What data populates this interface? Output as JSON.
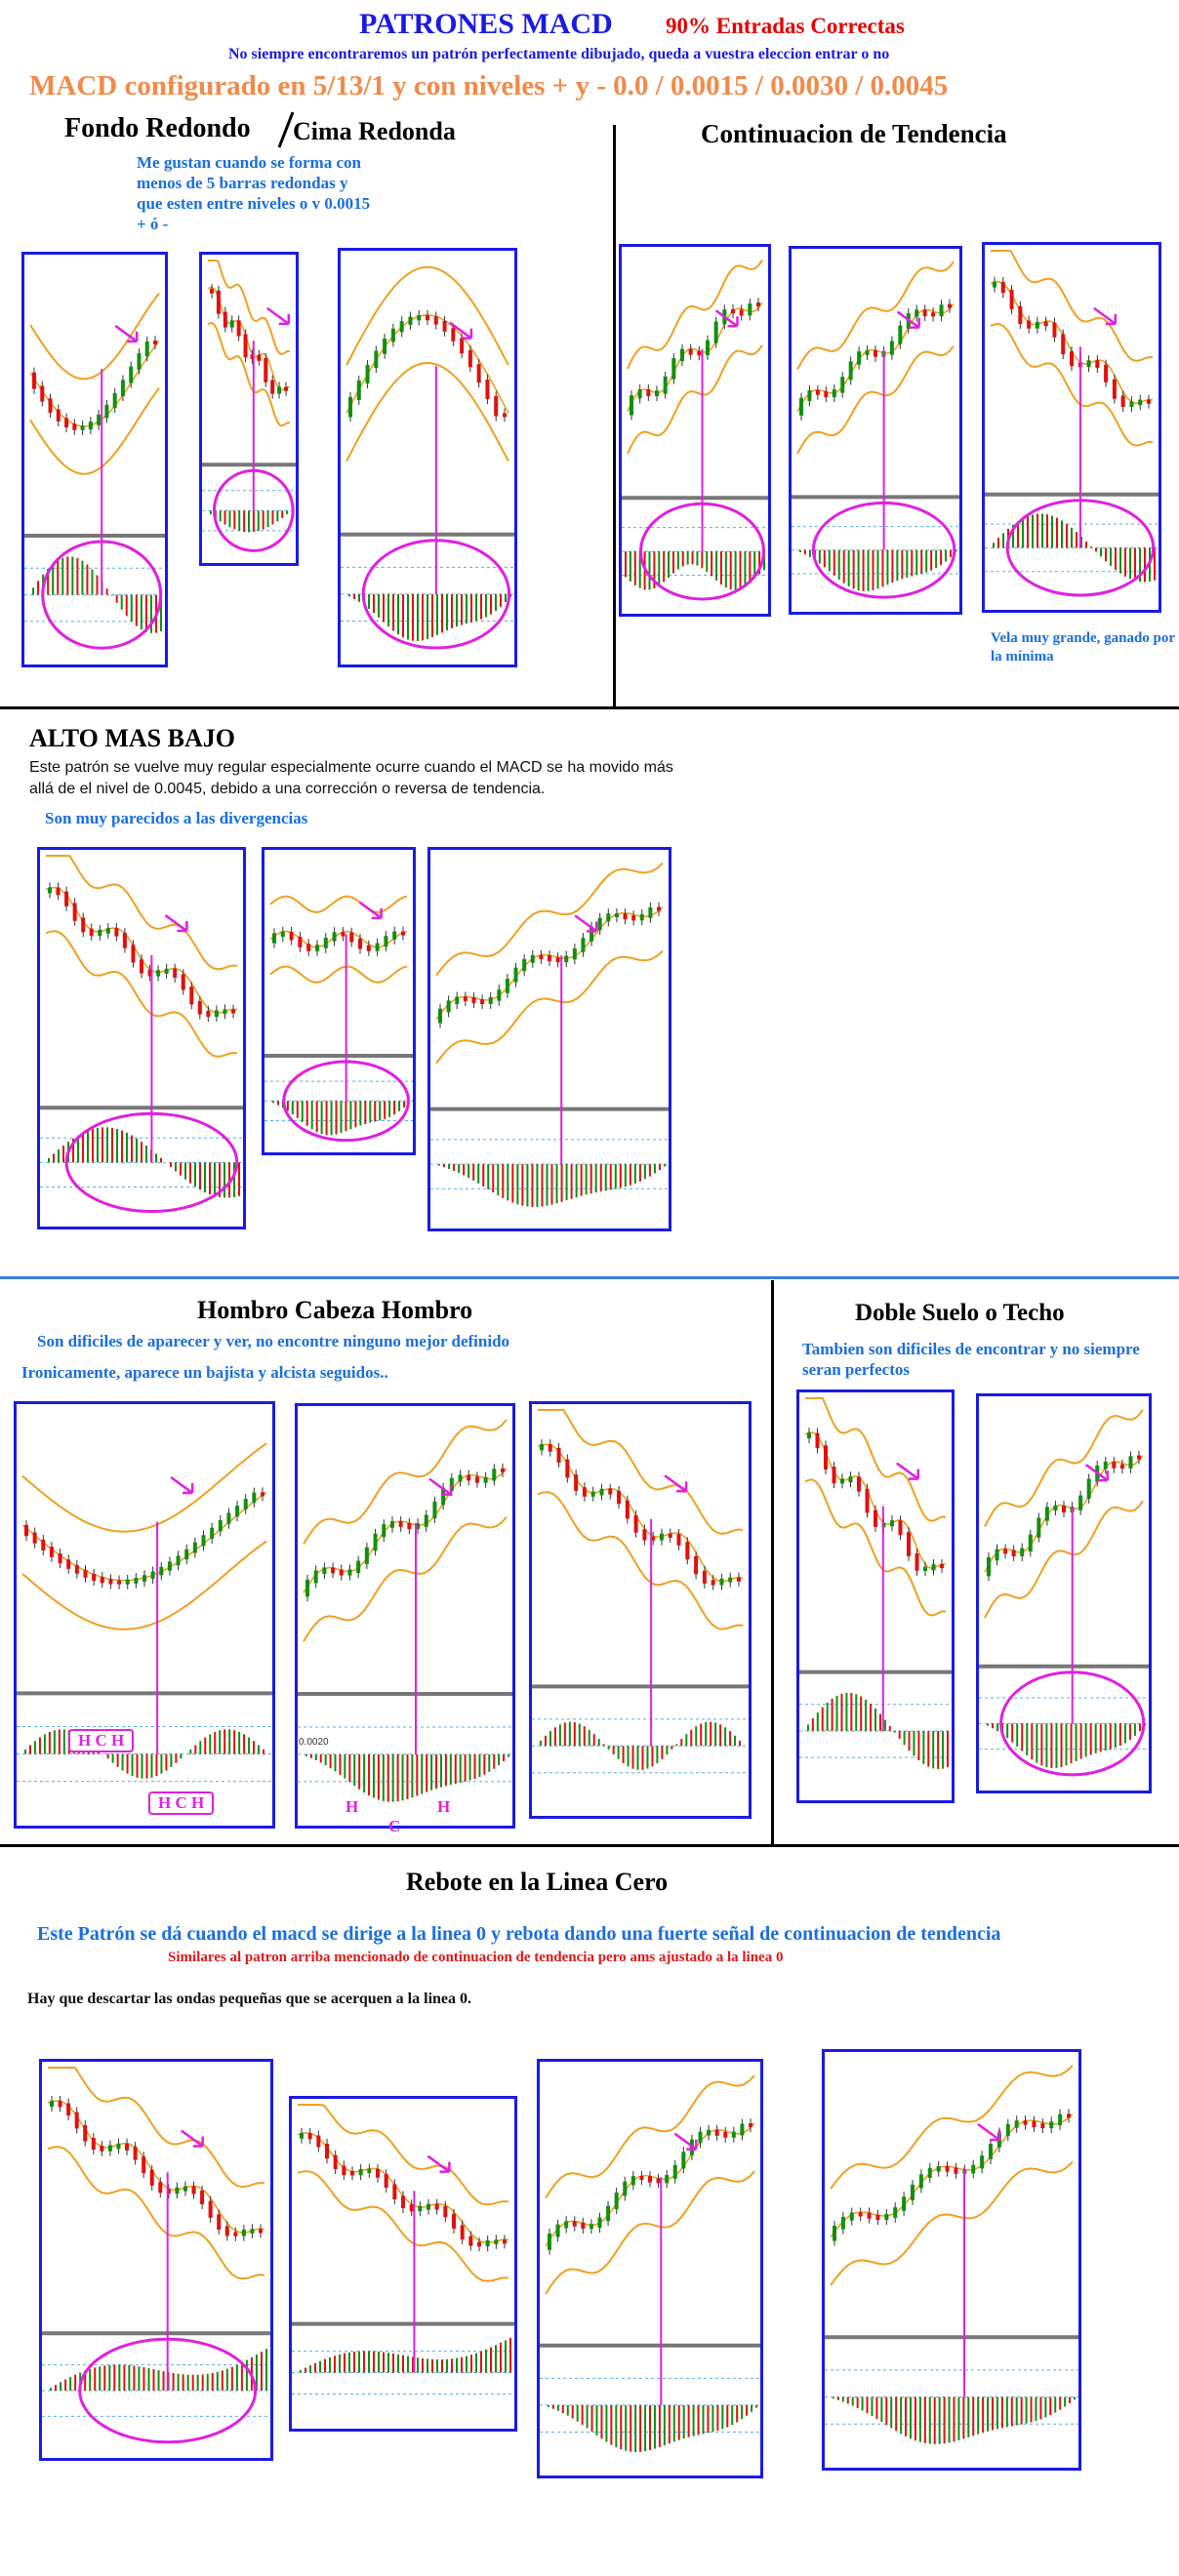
{
  "header": {
    "title": "PATRONES MACD",
    "title_right": "90% Entradas Correctas",
    "subtitle": "No siempre encontraremos un patrón perfectamente dibujado, queda a vuestra eleccion entrar o no",
    "config": "MACD configurado en 5/13/1 y con niveles + y - 0.0 / 0.0015 / 0.0030 / 0.0045"
  },
  "sections": {
    "fondo": {
      "title_a": "Fondo Redondo",
      "title_b": "Cima Redonda",
      "note": "Me gustan cuando se forma con menos de 5 barras redondas y que esten entre niveles o v 0.0015 + ó -"
    },
    "continuacion": {
      "title": "Continuacion de Tendencia",
      "note": "Vela muy grande, ganado por la mínima"
    },
    "alto": {
      "title": "ALTO MAS BAJO",
      "desc": "Este patrón se vuelve muy regular especialmente ocurre cuando el MACD se ha movido más allá de el nivel de 0.0045, debido a una corrección o reversa de tendencia.",
      "note": "Son muy parecidos a las divergencias"
    },
    "hch": {
      "title": "Hombro Cabeza Hombro",
      "note1": "Son dificiles de aparecer y ver, no encontre ninguno mejor definido",
      "note2": "Ironicamente, aparece un bajista y alcista seguidos..",
      "label_hch": "H C H",
      "label_h": "H",
      "label_c": "C",
      "level_label": "0.0020"
    },
    "doble": {
      "title": "Doble Suelo o Techo",
      "note": "Tambien son dificiles de encontrar y no siempre seran perfectos"
    },
    "rebote": {
      "title": "Rebote en la Linea Cero",
      "desc": "Este Patrón se dá cuando el macd se dirige a la linea 0 y rebota dando una fuerte señal de continuacion de tendencia",
      "note_red": "Similares al patron arriba  mencionado de continuacion de tendencia pero ams ajustado a la linea 0",
      "note_dark": "Hay que descartar las ondas pequeñas que se acerquen a la linea 0."
    }
  },
  "colors": {
    "frame": "#1a1ae6",
    "bull": "#109010",
    "bear": "#e01010",
    "band": "#f0a020",
    "marker": "#e020e0",
    "zero_line": "#777777"
  }
}
